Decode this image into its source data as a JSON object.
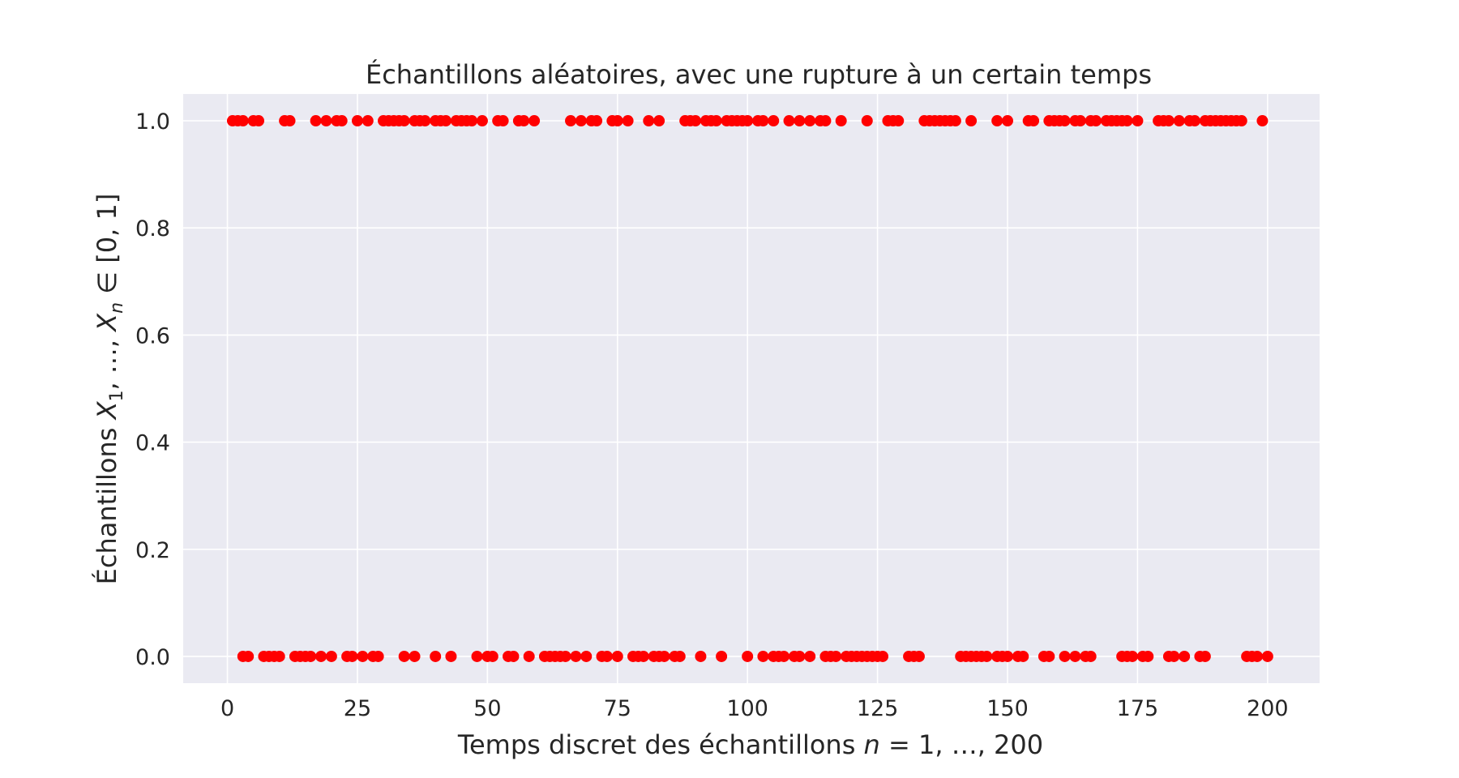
{
  "chart_data": {
    "type": "scatter",
    "title": "Échantillons aléatoires, avec une rupture à un certain temps",
    "xlabel": "Temps discret des échantillons n = 1, …, 200",
    "xlabel_parts": {
      "prefix": "Temps discret des échantillons ",
      "var": "n",
      "suffix": " = 1, …, 200"
    },
    "ylabel": "Échantillons X1, …, Xn ∈ [0, 1]",
    "ylabel_parts": {
      "prefix": "Échantillons ",
      "x1": "X",
      "sub1": "1",
      "mid": ", …, ",
      "xn": "X",
      "subn": "n",
      "suffix": " ∈ [0, 1]"
    },
    "xlim": [
      -8.5,
      210
    ],
    "ylim": [
      -0.05,
      1.05
    ],
    "xticks": [
      0,
      25,
      50,
      75,
      100,
      125,
      150,
      175,
      200
    ],
    "yticks": [
      0.0,
      0.2,
      0.4,
      0.6,
      0.8,
      1.0
    ],
    "ytick_labels": [
      "0.0",
      "0.2",
      "0.4",
      "0.6",
      "0.8",
      "1.0"
    ],
    "grid": true,
    "background": "#eaeaf2",
    "marker_color": "#ff0000",
    "ones_x": [
      1,
      2,
      3,
      5,
      6,
      11,
      12,
      17,
      19,
      21,
      22,
      25,
      27,
      30,
      31,
      32,
      33,
      34,
      36,
      37,
      38,
      40,
      41,
      42,
      44,
      45,
      46,
      47,
      49,
      52,
      53,
      56,
      57,
      59,
      66,
      68,
      70,
      71,
      74,
      75,
      77,
      81,
      83,
      88,
      89,
      90,
      92,
      93,
      94,
      96,
      97,
      98,
      99,
      100,
      102,
      103,
      105,
      108,
      110,
      112,
      114,
      115,
      118,
      123,
      127,
      128,
      129,
      134,
      135,
      136,
      137,
      138,
      139,
      140,
      143,
      148,
      150,
      154,
      155,
      158,
      159,
      160,
      161,
      163,
      164,
      166,
      167,
      169,
      170,
      171,
      172,
      173,
      175,
      179,
      180,
      181,
      183,
      185,
      186,
      188,
      189,
      190,
      191,
      192,
      193,
      194,
      195,
      199
    ],
    "zeros_x": [
      3,
      4,
      7,
      8,
      9,
      10,
      13,
      14,
      15,
      16,
      18,
      20,
      23,
      24,
      26,
      28,
      29,
      34,
      36,
      40,
      43,
      48,
      50,
      51,
      54,
      55,
      58,
      61,
      62,
      63,
      64,
      65,
      67,
      69,
      72,
      73,
      75,
      78,
      79,
      80,
      82,
      83,
      84,
      86,
      87,
      91,
      95,
      100,
      103,
      105,
      106,
      107,
      109,
      110,
      112,
      115,
      116,
      117,
      119,
      120,
      121,
      122,
      123,
      124,
      125,
      126,
      131,
      132,
      133,
      141,
      142,
      143,
      144,
      145,
      146,
      148,
      149,
      150,
      152,
      153,
      157,
      158,
      161,
      163,
      165,
      166,
      172,
      173,
      174,
      176,
      177,
      181,
      182,
      184,
      187,
      188,
      196,
      197,
      198,
      200
    ]
  }
}
